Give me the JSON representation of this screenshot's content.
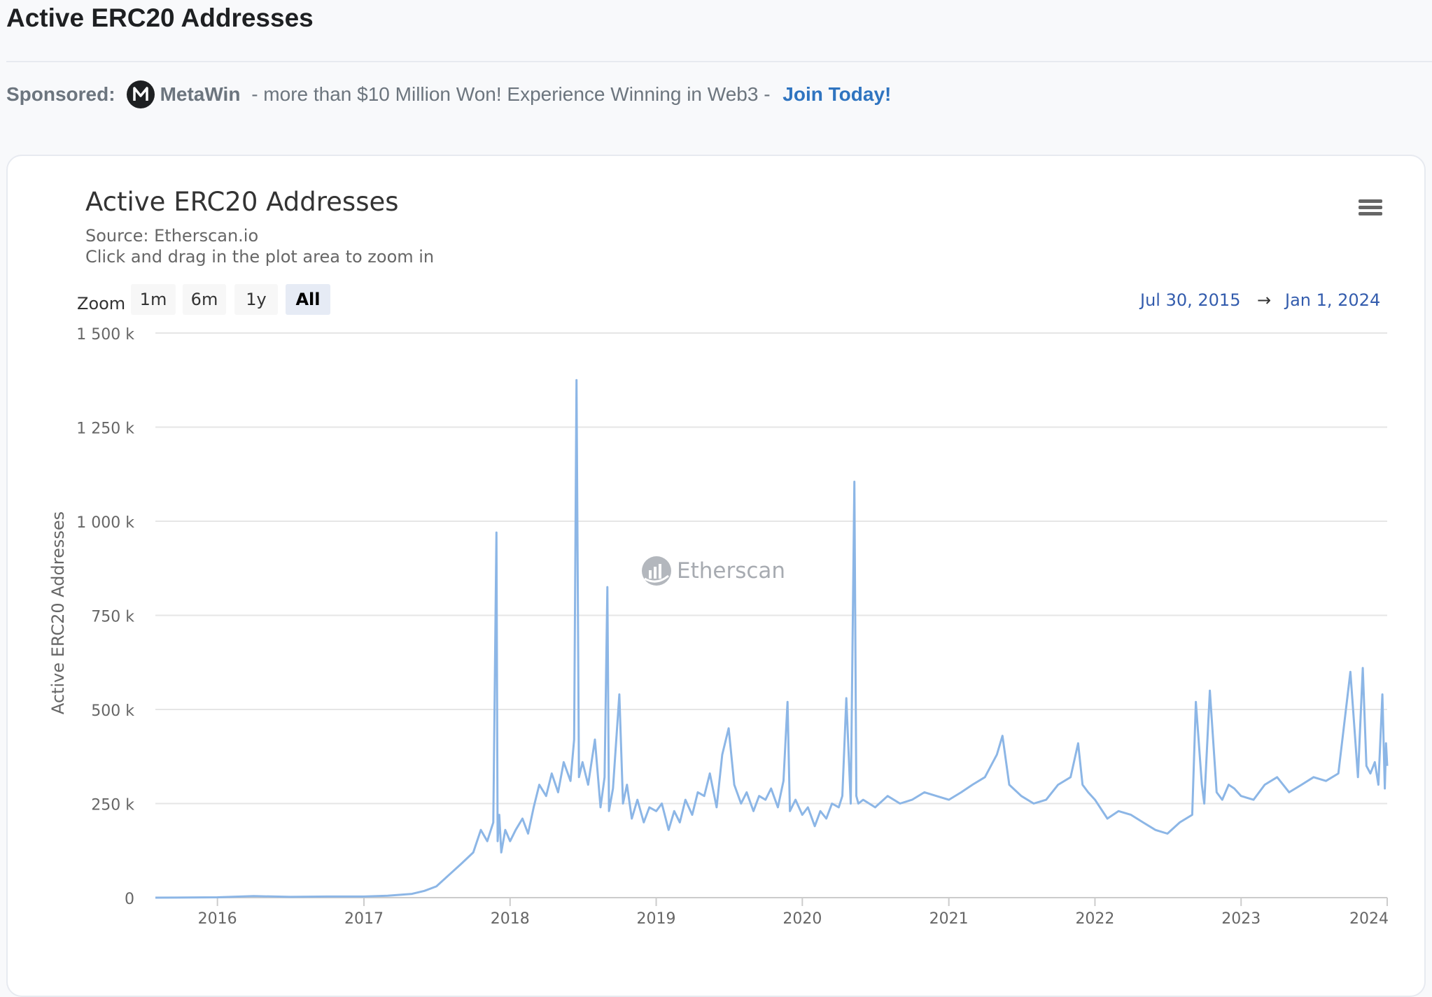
{
  "page": {
    "title": "Active ERC20 Addresses"
  },
  "sponsor": {
    "label": "Sponsored:",
    "brand": "MetaWin",
    "text": " - more than $10 Million Won! Experience Winning in Web3 - ",
    "link": "Join Today!"
  },
  "chart": {
    "title": "Active ERC20 Addresses",
    "source": "Source: Etherscan.io",
    "hint": "Click and drag in the plot area to zoom in",
    "zoom_label": "Zoom",
    "zoom_buttons": [
      "1m",
      "6m",
      "1y",
      "All"
    ],
    "zoom_active": "All",
    "range_from": "Jul 30, 2015",
    "range_arrow": "→",
    "range_to": "Jan 1, 2024",
    "watermark": "Etherscan"
  },
  "colors": {
    "line": "#8cb6e6",
    "grid": "#e6e6e6",
    "link": "#2f74c0",
    "range": "#335cad"
  },
  "icons": [
    "metawin-logo-icon",
    "menu-icon",
    "etherscan-logo-icon"
  ],
  "chart_data": {
    "type": "line",
    "title": "Active ERC20 Addresses",
    "subtitle": "Source: Etherscan.io",
    "xlabel": "",
    "ylabel": "Active ERC20 Addresses",
    "ylim": [
      0,
      1500000
    ],
    "xlim": [
      "2015-07-30",
      "2024-01-01"
    ],
    "y_ticks": [
      0,
      250000,
      500000,
      750000,
      1000000,
      1250000,
      1500000
    ],
    "y_tick_labels": [
      "0",
      "250 k",
      "500 k",
      "750 k",
      "1 000 k",
      "1 250 k",
      "1 500 k"
    ],
    "x_ticks": [
      "2016-01-01",
      "2017-01-01",
      "2018-01-01",
      "2019-01-01",
      "2020-01-01",
      "2021-01-01",
      "2022-01-01",
      "2023-01-01",
      "2024-01-01"
    ],
    "x_tick_labels": [
      "2016",
      "2017",
      "2018",
      "2019",
      "2020",
      "2021",
      "2022",
      "2023",
      "2024"
    ],
    "grid": true,
    "legend": "none",
    "series": [
      {
        "x": [
          "2015-07-30",
          "2016-01-01",
          "2016-04-01",
          "2016-07-01",
          "2016-10-01",
          "2017-01-01",
          "2017-03-01",
          "2017-05-01",
          "2017-06-01",
          "2017-07-01",
          "2017-08-01",
          "2017-09-01",
          "2017-10-01",
          "2017-10-20",
          "2017-11-05",
          "2017-11-20",
          "2017-11-28",
          "2017-12-01",
          "2017-12-05",
          "2017-12-10",
          "2017-12-20",
          "2018-01-01",
          "2018-01-15",
          "2018-02-01",
          "2018-02-15",
          "2018-03-01",
          "2018-03-15",
          "2018-04-01",
          "2018-04-15",
          "2018-05-01",
          "2018-05-15",
          "2018-06-01",
          "2018-06-10",
          "2018-06-16",
          "2018-06-22",
          "2018-07-01",
          "2018-07-15",
          "2018-08-01",
          "2018-08-15",
          "2018-08-25",
          "2018-09-01",
          "2018-09-05",
          "2018-09-15",
          "2018-10-01",
          "2018-10-10",
          "2018-10-20",
          "2018-11-01",
          "2018-11-15",
          "2018-12-01",
          "2018-12-15",
          "2019-01-01",
          "2019-01-15",
          "2019-02-01",
          "2019-02-15",
          "2019-03-01",
          "2019-03-15",
          "2019-04-01",
          "2019-04-15",
          "2019-05-01",
          "2019-05-15",
          "2019-06-01",
          "2019-06-15",
          "2019-07-01",
          "2019-07-15",
          "2019-08-01",
          "2019-08-15",
          "2019-09-01",
          "2019-09-15",
          "2019-10-01",
          "2019-10-15",
          "2019-11-01",
          "2019-11-15",
          "2019-11-25",
          "2019-12-01",
          "2019-12-15",
          "2020-01-01",
          "2020-01-15",
          "2020-02-01",
          "2020-02-15",
          "2020-03-01",
          "2020-03-15",
          "2020-04-01",
          "2020-04-10",
          "2020-04-20",
          "2020-05-01",
          "2020-05-10",
          "2020-05-15",
          "2020-05-20",
          "2020-06-01",
          "2020-07-01",
          "2020-08-01",
          "2020-09-01",
          "2020-10-01",
          "2020-11-01",
          "2020-12-01",
          "2021-01-01",
          "2021-02-01",
          "2021-03-01",
          "2021-04-01",
          "2021-05-01",
          "2021-05-15",
          "2021-06-01",
          "2021-07-01",
          "2021-08-01",
          "2021-09-01",
          "2021-10-01",
          "2021-11-01",
          "2021-11-20",
          "2021-12-01",
          "2021-12-15",
          "2022-01-01",
          "2022-02-01",
          "2022-03-01",
          "2022-04-01",
          "2022-05-01",
          "2022-06-01",
          "2022-07-01",
          "2022-08-01",
          "2022-09-01",
          "2022-09-10",
          "2022-09-25",
          "2022-10-01",
          "2022-10-15",
          "2022-11-01",
          "2022-11-15",
          "2022-12-01",
          "2022-12-15",
          "2023-01-01",
          "2023-02-01",
          "2023-03-01",
          "2023-04-01",
          "2023-05-01",
          "2023-06-01",
          "2023-07-01",
          "2023-08-01",
          "2023-09-01",
          "2023-10-01",
          "2023-10-20",
          "2023-11-01",
          "2023-11-10",
          "2023-11-20",
          "2023-12-01",
          "2023-12-10",
          "2023-12-20",
          "2023-12-26",
          "2023-12-29",
          "2024-01-01"
        ],
        "y": [
          0,
          1000,
          4000,
          2000,
          3000,
          3000,
          5000,
          10000,
          18000,
          30000,
          60000,
          90000,
          120000,
          180000,
          150000,
          200000,
          970000,
          150000,
          220000,
          120000,
          180000,
          150000,
          180000,
          210000,
          170000,
          240000,
          300000,
          270000,
          330000,
          280000,
          360000,
          310000,
          420000,
          1375000,
          320000,
          360000,
          300000,
          420000,
          240000,
          320000,
          825000,
          230000,
          290000,
          540000,
          250000,
          300000,
          210000,
          260000,
          200000,
          240000,
          230000,
          250000,
          180000,
          230000,
          200000,
          260000,
          220000,
          280000,
          270000,
          330000,
          240000,
          380000,
          450000,
          300000,
          250000,
          280000,
          230000,
          270000,
          260000,
          290000,
          240000,
          310000,
          520000,
          230000,
          260000,
          220000,
          240000,
          190000,
          230000,
          210000,
          250000,
          240000,
          270000,
          530000,
          250000,
          1105000,
          270000,
          250000,
          260000,
          240000,
          270000,
          250000,
          260000,
          280000,
          270000,
          260000,
          280000,
          300000,
          320000,
          380000,
          430000,
          300000,
          270000,
          250000,
          260000,
          300000,
          320000,
          410000,
          300000,
          280000,
          260000,
          210000,
          230000,
          220000,
          200000,
          180000,
          170000,
          200000,
          220000,
          520000,
          300000,
          250000,
          550000,
          280000,
          260000,
          300000,
          290000,
          270000,
          260000,
          300000,
          320000,
          280000,
          300000,
          320000,
          310000,
          330000,
          600000,
          320000,
          610000,
          350000,
          330000,
          360000,
          300000,
          540000,
          290000,
          410000,
          350000
        ]
      }
    ]
  }
}
